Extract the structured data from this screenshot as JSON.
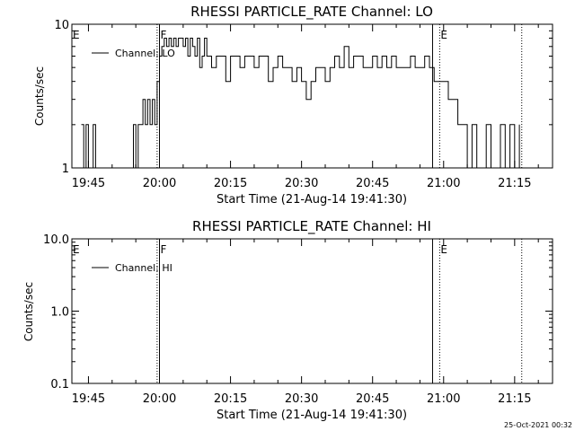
{
  "footer": {
    "timestamp": "25-Oct-2021 00:32"
  },
  "chart_data": [
    {
      "type": "line",
      "title": "RHESSI PARTICLE_RATE Channel: LO",
      "xlabel": "Start Time (21-Aug-14 19:41:30)",
      "ylabel": "Counts/sec",
      "ylog": true,
      "ylim": [
        1,
        10
      ],
      "xlim": [
        "19:41:30",
        "21:23:00"
      ],
      "yticks": [
        "1",
        "10"
      ],
      "xticks": [
        "19:45",
        "20:00",
        "20:15",
        "20:30",
        "20:45",
        "21:00",
        "21:15"
      ],
      "legend": {
        "position": "top-left",
        "entries": [
          "Channel: LO"
        ]
      },
      "markers": [
        {
          "label": "E",
          "time": "19:41:30",
          "style": "none"
        },
        {
          "label": "F",
          "time": "20:00:00",
          "style": "solid"
        },
        {
          "label": "",
          "time": "19:59:30",
          "style": "dotted"
        },
        {
          "label": "",
          "time": "20:57:40",
          "style": "solid"
        },
        {
          "label": "E",
          "time": "20:59:10",
          "style": "dotted"
        },
        {
          "label": "",
          "time": "21:16:30",
          "style": "dotted"
        }
      ],
      "series": [
        {
          "name": "Channel: LO",
          "x": [
            "19:43:30",
            "19:44:00",
            "19:44:30",
            "19:45:00",
            "19:45:30",
            "19:46:00",
            "19:46:30",
            "19:54:00",
            "19:54:30",
            "19:55:00",
            "19:55:30",
            "19:56:00",
            "19:56:30",
            "19:57:00",
            "19:57:30",
            "19:58:00",
            "19:58:30",
            "19:59:00",
            "19:59:30",
            "20:00:00",
            "20:00:30",
            "20:01:00",
            "20:01:30",
            "20:02:00",
            "20:02:30",
            "20:03:00",
            "20:03:30",
            "20:04:00",
            "20:04:30",
            "20:05:00",
            "20:05:30",
            "20:06:00",
            "20:06:30",
            "20:07:00",
            "20:07:30",
            "20:08:00",
            "20:08:30",
            "20:09:00",
            "20:09:30",
            "20:10:00",
            "20:11:00",
            "20:12:00",
            "20:13:00",
            "20:14:00",
            "20:15:00",
            "20:16:00",
            "20:17:00",
            "20:18:00",
            "20:19:00",
            "20:20:00",
            "20:21:00",
            "20:22:00",
            "20:23:00",
            "20:24:00",
            "20:25:00",
            "20:26:00",
            "20:27:00",
            "20:28:00",
            "20:29:00",
            "20:30:00",
            "20:31:00",
            "20:32:00",
            "20:33:00",
            "20:34:00",
            "20:35:00",
            "20:36:00",
            "20:37:00",
            "20:38:00",
            "20:39:00",
            "20:40:00",
            "20:41:00",
            "20:42:00",
            "20:43:00",
            "20:44:00",
            "20:45:00",
            "20:46:00",
            "20:47:00",
            "20:48:00",
            "20:49:00",
            "20:50:00",
            "20:51:00",
            "20:52:00",
            "20:53:00",
            "20:54:00",
            "20:55:00",
            "20:56:00",
            "20:57:00",
            "20:58:00",
            "20:59:00",
            "21:00:00",
            "21:01:00",
            "21:02:00",
            "21:03:00",
            "21:04:00",
            "21:05:00",
            "21:06:00",
            "21:07:00",
            "21:08:00",
            "21:09:00",
            "21:10:00",
            "21:11:00",
            "21:12:00",
            "21:13:00",
            "21:14:00",
            "21:15:00",
            "21:16:00"
          ],
          "y": [
            2,
            1,
            2,
            1,
            1,
            2,
            1,
            1,
            2,
            1,
            2,
            2,
            3,
            2,
            3,
            2,
            3,
            2,
            4,
            6,
            7,
            8,
            7,
            8,
            7,
            8,
            7,
            8,
            8,
            7,
            8,
            6,
            8,
            7,
            6,
            8,
            5,
            6,
            8,
            6,
            5,
            6,
            6,
            4,
            6,
            6,
            5,
            6,
            6,
            5,
            6,
            6,
            4,
            5,
            6,
            5,
            5,
            4,
            5,
            4,
            3,
            4,
            5,
            5,
            4,
            5,
            6,
            5,
            7,
            5,
            6,
            6,
            5,
            5,
            6,
            5,
            6,
            5,
            6,
            5,
            5,
            5,
            6,
            5,
            5,
            6,
            5,
            4,
            4,
            4,
            3,
            3,
            2,
            2,
            1,
            2,
            1,
            1,
            2,
            1,
            1,
            2,
            1,
            2,
            1,
            2
          ]
        }
      ]
    },
    {
      "type": "line",
      "title": "RHESSI PARTICLE_RATE Channel: HI",
      "xlabel": "Start Time (21-Aug-14 19:41:30)",
      "ylabel": "Counts/sec",
      "ylog": true,
      "ylim": [
        0.1,
        10
      ],
      "xlim": [
        "19:41:30",
        "21:23:00"
      ],
      "yticks": [
        "0.1",
        "1.0",
        "10.0"
      ],
      "xticks": [
        "19:45",
        "20:00",
        "20:15",
        "20:30",
        "20:45",
        "21:00",
        "21:15"
      ],
      "legend": {
        "position": "top-left",
        "entries": [
          "Channel: HI"
        ]
      },
      "markers": [
        {
          "label": "E",
          "time": "19:41:30",
          "style": "none"
        },
        {
          "label": "F",
          "time": "20:00:00",
          "style": "solid"
        },
        {
          "label": "",
          "time": "19:59:30",
          "style": "dotted"
        },
        {
          "label": "",
          "time": "20:57:40",
          "style": "solid"
        },
        {
          "label": "E",
          "time": "20:59:10",
          "style": "dotted"
        },
        {
          "label": "",
          "time": "21:16:30",
          "style": "dotted"
        }
      ],
      "series": [
        {
          "name": "Channel: HI",
          "x": [],
          "y": []
        }
      ]
    }
  ]
}
